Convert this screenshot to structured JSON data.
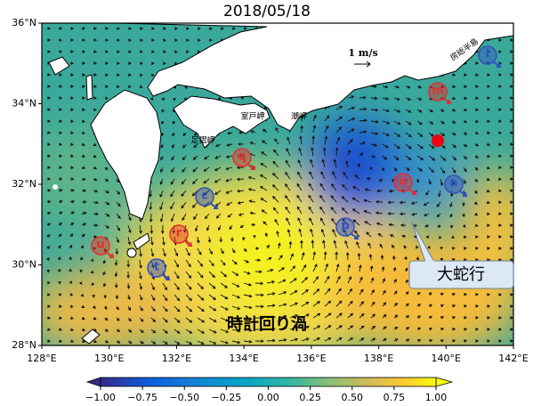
{
  "map": {
    "title": "2018/05/18",
    "xlim": [
      128,
      142
    ],
    "ylim": [
      28,
      36
    ],
    "xticks": [
      {
        "value": 128,
        "label": "128°E"
      },
      {
        "value": 130,
        "label": "130°E"
      },
      {
        "value": 132,
        "label": "132°E"
      },
      {
        "value": 134,
        "label": "134°E"
      },
      {
        "value": 136,
        "label": "136°E"
      },
      {
        "value": 138,
        "label": "138°E"
      },
      {
        "value": 140,
        "label": "140°E"
      },
      {
        "value": 142,
        "label": "142°E"
      }
    ],
    "yticks": [
      {
        "value": 28,
        "label": "28°N"
      },
      {
        "value": 30,
        "label": "30°N"
      },
      {
        "value": 32,
        "label": "32°N"
      },
      {
        "value": 34,
        "label": "34°N"
      },
      {
        "value": 36,
        "label": "36°N"
      }
    ],
    "colorbar": {
      "lim": [
        -1,
        1
      ],
      "ticks": [
        {
          "value": -1,
          "label": "−1.00"
        },
        {
          "value": -0.75,
          "label": "−0.75"
        },
        {
          "value": -0.5,
          "label": "−0.50"
        },
        {
          "value": -0.25,
          "label": "−0.25"
        },
        {
          "value": 0,
          "label": "0.00"
        },
        {
          "value": 0.25,
          "label": "0.25"
        },
        {
          "value": 0.5,
          "label": "0.50"
        },
        {
          "value": 0.75,
          "label": "0.75"
        },
        {
          "value": 1,
          "label": "1.00"
        }
      ]
    },
    "scale_label": "1 m/s",
    "places": [
      "足摺岬",
      "室戸岬",
      "潮岬",
      "房総半島"
    ],
    "annotations": {
      "meander": "大蛇行",
      "eddy": "時計回り渦"
    },
    "eddies": [
      {
        "label": "q",
        "color": "#e03030"
      },
      {
        "label": "m",
        "color": "#e03030"
      },
      {
        "label": "o",
        "color": "#e03030"
      },
      {
        "label": "u",
        "color": "#e03030"
      },
      {
        "label": "r",
        "color": "#e03030"
      },
      {
        "label": "l",
        "color": "#3050c0"
      },
      {
        "label": "n",
        "color": "#3050c0"
      },
      {
        "label": "p",
        "color": "#3050c0"
      },
      {
        "label": "c",
        "color": "#3050c0"
      },
      {
        "label": "t",
        "color": "#3050c0"
      }
    ]
  }
}
